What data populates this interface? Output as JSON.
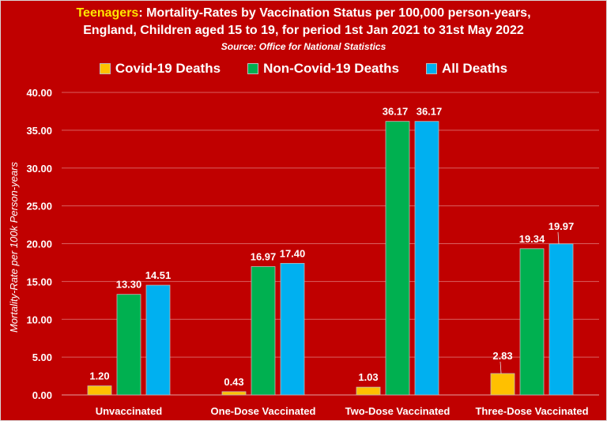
{
  "chart_data": {
    "type": "bar",
    "title_highlight": "Teenagers",
    "title_rest": ": Mortality-Rates by Vaccination Status per 100,000 person-years,",
    "title_line2": "England, Children aged 15 to 19, for period 1st Jan 2021 to 31st May 2022",
    "subtitle": "Source: Office for National Statistics",
    "xlabel": "",
    "ylabel": "Mortality-Rate per 100k Person-years",
    "ylim": [
      0,
      40
    ],
    "yticks": [
      "0.00",
      "5.00",
      "10.00",
      "15.00",
      "20.00",
      "25.00",
      "30.00",
      "35.00",
      "40.00"
    ],
    "grid": true,
    "legend_position": "top",
    "categories": [
      "Unvaccinated",
      "One-Dose Vaccinated",
      "Two-Dose Vaccinated",
      "Three-Dose Vaccinated"
    ],
    "series": [
      {
        "name": "Covid-19 Deaths",
        "color": "#ffc000",
        "values": [
          1.2,
          0.43,
          1.03,
          2.83
        ],
        "labels": [
          "1.20",
          "0.43",
          "1.03",
          "2.83"
        ]
      },
      {
        "name": "Non-Covid-19 Deaths",
        "color": "#00b050",
        "values": [
          13.3,
          16.97,
          36.17,
          19.34
        ],
        "labels": [
          "13.30",
          "16.97",
          "36.17",
          "19.34"
        ]
      },
      {
        "name": "All Deaths",
        "color": "#00b0f0",
        "values": [
          14.51,
          17.4,
          36.17,
          19.97
        ],
        "labels": [
          "14.51",
          "17.40",
          "36.17",
          "19.97"
        ]
      }
    ]
  },
  "colors": {
    "background": "#c00000",
    "highlight": "#ffe600"
  }
}
